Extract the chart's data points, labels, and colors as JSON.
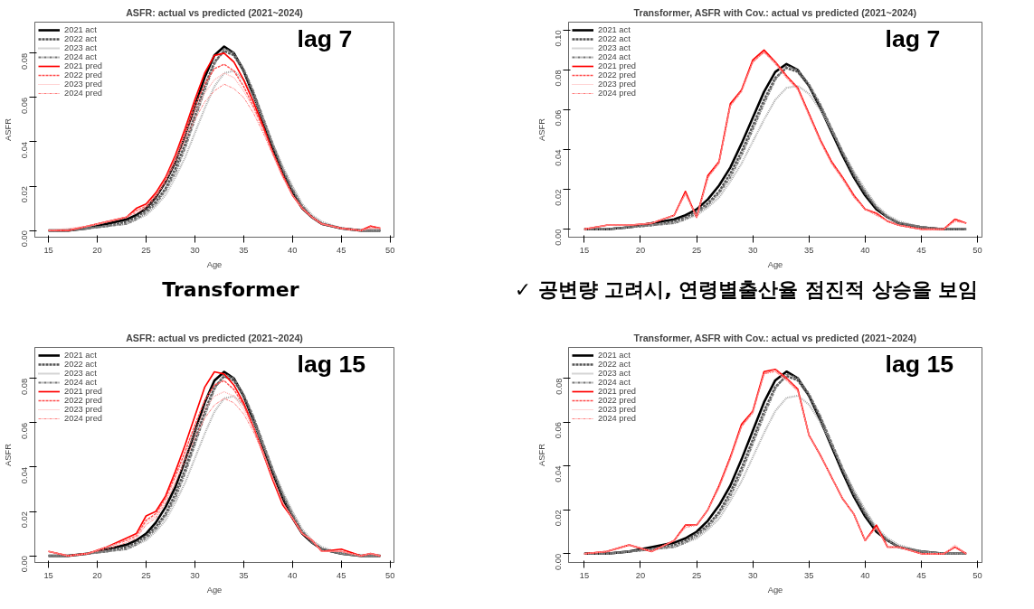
{
  "chart_data": [
    {
      "type": "line",
      "title": "ASFR: actual vs predicted (2021~2024)",
      "xlabel": "Age",
      "ylabel": "ASFR",
      "annotations": [
        "lag 7"
      ],
      "legend": "top left",
      "grid": false,
      "x": [
        15,
        17,
        19,
        21,
        23,
        24,
        25,
        26,
        27,
        28,
        29,
        30,
        31,
        32,
        33,
        34,
        35,
        36,
        37,
        38,
        39,
        40,
        41,
        42,
        43,
        45,
        47,
        48,
        49
      ],
      "xlim": [
        13.6,
        50.4
      ],
      "xticks": [
        15,
        20,
        25,
        30,
        35,
        40,
        45,
        50
      ],
      "ylim": [
        -0.003,
        0.094
      ],
      "yticks": [
        {
          "value": 0,
          "label": "0.00"
        },
        {
          "value": 0.02,
          "label": "0.02"
        },
        {
          "value": 0.04,
          "label": "0.04"
        },
        {
          "value": 0.06,
          "label": "0.06"
        },
        {
          "value": 0.08,
          "label": "0.08"
        }
      ],
      "series": [
        {
          "name": "2021 act",
          "color": "#000000",
          "line_style": "solid",
          "values": [
            0,
            0,
            0.001,
            0.003,
            0.005,
            0.007,
            0.01,
            0.015,
            0.022,
            0.031,
            0.043,
            0.056,
            0.069,
            0.079,
            0.083,
            0.08,
            0.072,
            0.061,
            0.049,
            0.037,
            0.026,
            0.017,
            0.01,
            0.006,
            0.003,
            0.001,
            0,
            0,
            0
          ]
        },
        {
          "name": "2022 act",
          "color": "#555555",
          "line_style": "dashed",
          "values": [
            0,
            0,
            0.001,
            0.002,
            0.004,
            0.006,
            0.009,
            0.013,
            0.019,
            0.028,
            0.039,
            0.052,
            0.065,
            0.076,
            0.081,
            0.079,
            0.072,
            0.062,
            0.05,
            0.038,
            0.027,
            0.018,
            0.011,
            0.006,
            0.003,
            0.001,
            0,
            0,
            0
          ]
        },
        {
          "name": "2023 act",
          "color": "#aaaaaa",
          "line_style": "dotted",
          "values": [
            0,
            0,
            0.001,
            0.002,
            0.003,
            0.005,
            0.007,
            0.011,
            0.016,
            0.024,
            0.033,
            0.044,
            0.055,
            0.065,
            0.071,
            0.072,
            0.068,
            0.06,
            0.05,
            0.039,
            0.029,
            0.02,
            0.012,
            0.007,
            0.004,
            0.001,
            0,
            0,
            0
          ]
        },
        {
          "name": "2024 act",
          "color": "#777777",
          "line_style": "dashdot",
          "values": [
            0,
            0,
            0.001,
            0.002,
            0.003,
            0.005,
            0.008,
            0.012,
            0.018,
            0.026,
            0.037,
            0.05,
            0.063,
            0.075,
            0.082,
            0.08,
            0.073,
            0.063,
            0.051,
            0.039,
            0.028,
            0.019,
            0.011,
            0.006,
            0.003,
            0.001,
            0,
            0,
            0
          ]
        },
        {
          "name": "2021 pred",
          "color": "#ff0000",
          "line_style": "solid",
          "values": [
            0,
            0,
            0.002,
            0.004,
            0.006,
            0.01,
            0.012,
            0.017,
            0.024,
            0.034,
            0.046,
            0.059,
            0.071,
            0.079,
            0.08,
            0.076,
            0.068,
            0.058,
            0.047,
            0.035,
            0.025,
            0.016,
            0.01,
            0.006,
            0.003,
            0.001,
            0,
            0.002,
            0.001
          ]
        },
        {
          "name": "2022 pred",
          "color": "#ff4d4d",
          "line_style": "dashed",
          "values": [
            0,
            0,
            0.002,
            0.004,
            0.006,
            0.009,
            0.011,
            0.016,
            0.023,
            0.033,
            0.044,
            0.056,
            0.066,
            0.073,
            0.075,
            0.072,
            0.065,
            0.056,
            0.046,
            0.035,
            0.025,
            0.016,
            0.01,
            0.006,
            0.003,
            0.001,
            0,
            0.002,
            0.001
          ]
        },
        {
          "name": "2023 pred",
          "color": "#ffaaaa",
          "line_style": "dotted",
          "values": [
            0,
            0.001,
            0.002,
            0.004,
            0.006,
            0.009,
            0.011,
            0.016,
            0.023,
            0.032,
            0.043,
            0.053,
            0.062,
            0.068,
            0.071,
            0.069,
            0.063,
            0.055,
            0.045,
            0.034,
            0.024,
            0.016,
            0.01,
            0.006,
            0.003,
            0.001,
            0,
            0.001,
            0.001
          ]
        },
        {
          "name": "2024 pred",
          "color": "#ff7f7f",
          "line_style": "dashdot",
          "values": [
            0,
            0,
            0.002,
            0.004,
            0.006,
            0.008,
            0.01,
            0.015,
            0.022,
            0.031,
            0.041,
            0.05,
            0.058,
            0.063,
            0.066,
            0.064,
            0.06,
            0.053,
            0.044,
            0.034,
            0.024,
            0.016,
            0.01,
            0.006,
            0.003,
            0.001,
            0,
            0.001,
            0.001
          ]
        }
      ]
    },
    {
      "type": "line",
      "title": "Transformer, ASFR with Cov.: actual vs predicted (2021~2024)",
      "xlabel": "Age",
      "ylabel": "ASFR",
      "annotations": [
        "lag 7",
        "✓ 공변량 고려시, 연령별출산율 점진적 상승을 보임"
      ],
      "legend": "top left",
      "grid": false,
      "x": [
        15,
        17,
        19,
        21,
        23,
        24,
        25,
        26,
        27,
        28,
        29,
        30,
        31,
        32,
        33,
        34,
        35,
        36,
        37,
        38,
        39,
        40,
        41,
        42,
        43,
        45,
        47,
        48,
        49
      ],
      "xlim": [
        13.6,
        50.4
      ],
      "xticks": [
        15,
        20,
        25,
        30,
        35,
        40,
        45,
        50
      ],
      "ylim": [
        -0.004,
        0.104
      ],
      "yticks": [
        {
          "value": 0,
          "label": "0.00"
        },
        {
          "value": 0.02,
          "label": "0.02"
        },
        {
          "value": 0.04,
          "label": "0.04"
        },
        {
          "value": 0.06,
          "label": "0.06"
        },
        {
          "value": 0.08,
          "label": "0.08"
        },
        {
          "value": 0.1,
          "label": "0.10"
        }
      ],
      "series": [
        {
          "name": "2021 act",
          "color": "#000000",
          "line_style": "solid",
          "values": [
            0,
            0,
            0.001,
            0.003,
            0.005,
            0.007,
            0.01,
            0.015,
            0.022,
            0.031,
            0.043,
            0.056,
            0.069,
            0.079,
            0.083,
            0.08,
            0.072,
            0.061,
            0.049,
            0.037,
            0.026,
            0.017,
            0.01,
            0.006,
            0.003,
            0.001,
            0,
            0,
            0
          ]
        },
        {
          "name": "2022 act",
          "color": "#555555",
          "line_style": "dashed",
          "values": [
            0,
            0,
            0.001,
            0.002,
            0.004,
            0.006,
            0.009,
            0.013,
            0.019,
            0.028,
            0.039,
            0.052,
            0.065,
            0.076,
            0.081,
            0.079,
            0.072,
            0.062,
            0.05,
            0.038,
            0.027,
            0.018,
            0.011,
            0.006,
            0.003,
            0.001,
            0,
            0,
            0
          ]
        },
        {
          "name": "2023 act",
          "color": "#aaaaaa",
          "line_style": "dotted",
          "values": [
            0,
            0,
            0.001,
            0.002,
            0.003,
            0.005,
            0.007,
            0.011,
            0.016,
            0.024,
            0.033,
            0.044,
            0.055,
            0.065,
            0.071,
            0.072,
            0.068,
            0.06,
            0.05,
            0.039,
            0.029,
            0.02,
            0.012,
            0.007,
            0.004,
            0.001,
            0,
            0,
            0
          ]
        },
        {
          "name": "2024 act",
          "color": "#777777",
          "line_style": "dashdot",
          "values": [
            0,
            0,
            0.001,
            0.002,
            0.003,
            0.005,
            0.008,
            0.012,
            0.018,
            0.026,
            0.037,
            0.05,
            0.063,
            0.075,
            0.082,
            0.08,
            0.073,
            0.063,
            0.051,
            0.039,
            0.028,
            0.019,
            0.011,
            0.006,
            0.003,
            0.001,
            0,
            0,
            0
          ]
        },
        {
          "name": "2021 pred",
          "color": "#ff0000",
          "line_style": "solid",
          "values": [
            0,
            0.002,
            0.002,
            0.003,
            0.007,
            0.019,
            0.006,
            0.027,
            0.034,
            0.063,
            0.07,
            0.085,
            0.09,
            0.084,
            0.077,
            0.071,
            0.058,
            0.045,
            0.034,
            0.026,
            0.017,
            0.01,
            0.008,
            0.004,
            0.002,
            0,
            0,
            0.005,
            0.003
          ]
        },
        {
          "name": "2022 pred",
          "color": "#ff4d4d",
          "line_style": "dashed",
          "values": [
            0,
            0.002,
            0.002,
            0.003,
            0.007,
            0.018,
            0.006,
            0.026,
            0.034,
            0.062,
            0.07,
            0.084,
            0.089,
            0.084,
            0.077,
            0.071,
            0.058,
            0.045,
            0.034,
            0.026,
            0.017,
            0.01,
            0.008,
            0.004,
            0.002,
            0,
            0,
            0.005,
            0.003
          ]
        },
        {
          "name": "2023 pred",
          "color": "#ffaaaa",
          "line_style": "dotted",
          "values": [
            0,
            0.002,
            0.002,
            0.003,
            0.007,
            0.018,
            0.006,
            0.026,
            0.033,
            0.062,
            0.069,
            0.084,
            0.089,
            0.083,
            0.076,
            0.07,
            0.057,
            0.044,
            0.033,
            0.025,
            0.016,
            0.01,
            0.007,
            0.004,
            0.002,
            0,
            0,
            0.004,
            0.003
          ]
        },
        {
          "name": "2024 pred",
          "color": "#ff7f7f",
          "line_style": "dashdot",
          "values": [
            0,
            0.002,
            0.002,
            0.003,
            0.007,
            0.018,
            0.006,
            0.026,
            0.033,
            0.062,
            0.069,
            0.084,
            0.089,
            0.083,
            0.076,
            0.07,
            0.057,
            0.044,
            0.033,
            0.025,
            0.016,
            0.01,
            0.007,
            0.004,
            0.002,
            0,
            0,
            0.004,
            0.003
          ]
        }
      ]
    },
    {
      "type": "line",
      "title": "ASFR: actual vs predicted (2021~2024)",
      "xlabel": "Age",
      "ylabel": "ASFR",
      "annotations": [
        "lag 15",
        "Transformer"
      ],
      "legend": "top left",
      "grid": false,
      "x": [
        15,
        17,
        19,
        21,
        23,
        24,
        25,
        26,
        27,
        28,
        29,
        30,
        31,
        32,
        33,
        34,
        35,
        36,
        37,
        38,
        39,
        40,
        41,
        42,
        43,
        45,
        47,
        48,
        49
      ],
      "xlim": [
        13.6,
        50.4
      ],
      "xticks": [
        15,
        20,
        25,
        30,
        35,
        40,
        45,
        50
      ],
      "ylim": [
        -0.003,
        0.094
      ],
      "yticks": [
        {
          "value": 0,
          "label": "0.00"
        },
        {
          "value": 0.02,
          "label": "0.02"
        },
        {
          "value": 0.04,
          "label": "0.04"
        },
        {
          "value": 0.06,
          "label": "0.06"
        },
        {
          "value": 0.08,
          "label": "0.08"
        }
      ],
      "series": [
        {
          "name": "2021 act",
          "color": "#000000",
          "line_style": "solid",
          "values": [
            0,
            0,
            0.001,
            0.003,
            0.005,
            0.007,
            0.01,
            0.015,
            0.022,
            0.031,
            0.043,
            0.056,
            0.069,
            0.079,
            0.083,
            0.08,
            0.072,
            0.061,
            0.049,
            0.037,
            0.026,
            0.017,
            0.01,
            0.006,
            0.003,
            0.001,
            0,
            0,
            0
          ]
        },
        {
          "name": "2022 act",
          "color": "#555555",
          "line_style": "dashed",
          "values": [
            0,
            0,
            0.001,
            0.002,
            0.004,
            0.006,
            0.009,
            0.013,
            0.019,
            0.028,
            0.039,
            0.052,
            0.065,
            0.076,
            0.081,
            0.079,
            0.072,
            0.062,
            0.05,
            0.038,
            0.027,
            0.018,
            0.011,
            0.006,
            0.003,
            0.001,
            0,
            0,
            0
          ]
        },
        {
          "name": "2023 act",
          "color": "#aaaaaa",
          "line_style": "dotted",
          "values": [
            0,
            0,
            0.001,
            0.002,
            0.003,
            0.005,
            0.007,
            0.011,
            0.016,
            0.024,
            0.033,
            0.044,
            0.055,
            0.065,
            0.071,
            0.072,
            0.068,
            0.06,
            0.05,
            0.039,
            0.029,
            0.02,
            0.012,
            0.007,
            0.004,
            0.001,
            0,
            0,
            0
          ]
        },
        {
          "name": "2024 act",
          "color": "#777777",
          "line_style": "dashdot",
          "values": [
            0,
            0,
            0.001,
            0.002,
            0.003,
            0.005,
            0.008,
            0.012,
            0.018,
            0.026,
            0.037,
            0.05,
            0.063,
            0.075,
            0.082,
            0.08,
            0.073,
            0.063,
            0.051,
            0.039,
            0.028,
            0.019,
            0.011,
            0.006,
            0.003,
            0.001,
            0,
            0,
            0
          ]
        },
        {
          "name": "2021 pred",
          "color": "#ff0000",
          "line_style": "solid",
          "values": [
            0.002,
            0,
            0.001,
            0.004,
            0.008,
            0.01,
            0.018,
            0.02,
            0.027,
            0.038,
            0.05,
            0.063,
            0.076,
            0.083,
            0.082,
            0.077,
            0.069,
            0.058,
            0.046,
            0.034,
            0.023,
            0.017,
            0.01,
            0.007,
            0.002,
            0.003,
            0,
            0.001,
            0
          ]
        },
        {
          "name": "2022 pred",
          "color": "#ff4d4d",
          "line_style": "dashed",
          "values": [
            0.002,
            0,
            0.001,
            0.004,
            0.007,
            0.009,
            0.016,
            0.019,
            0.026,
            0.036,
            0.047,
            0.059,
            0.07,
            0.077,
            0.079,
            0.075,
            0.068,
            0.058,
            0.047,
            0.035,
            0.024,
            0.017,
            0.01,
            0.007,
            0.002,
            0.002,
            0,
            0.001,
            0
          ]
        },
        {
          "name": "2023 pred",
          "color": "#ffaaaa",
          "line_style": "dotted",
          "values": [
            0.002,
            0,
            0.001,
            0.004,
            0.007,
            0.009,
            0.015,
            0.018,
            0.025,
            0.035,
            0.045,
            0.056,
            0.066,
            0.072,
            0.074,
            0.072,
            0.066,
            0.057,
            0.046,
            0.035,
            0.024,
            0.017,
            0.01,
            0.007,
            0.002,
            0.002,
            0,
            0.001,
            0
          ]
        },
        {
          "name": "2024 pred",
          "color": "#ff7f7f",
          "line_style": "dashdot",
          "values": [
            0.002,
            0,
            0.001,
            0.003,
            0.006,
            0.008,
            0.014,
            0.017,
            0.024,
            0.033,
            0.043,
            0.053,
            0.062,
            0.068,
            0.071,
            0.069,
            0.064,
            0.056,
            0.046,
            0.035,
            0.024,
            0.017,
            0.01,
            0.007,
            0.002,
            0.002,
            0,
            0.001,
            0
          ]
        }
      ]
    },
    {
      "type": "line",
      "title": "Transformer, ASFR with Cov.: actual vs predicted (2021~2024)",
      "xlabel": "Age",
      "ylabel": "ASFR",
      "annotations": [
        "lag 15"
      ],
      "legend": "top left",
      "grid": false,
      "x": [
        15,
        17,
        19,
        21,
        23,
        24,
        25,
        26,
        27,
        28,
        29,
        30,
        31,
        32,
        33,
        34,
        35,
        36,
        37,
        38,
        39,
        40,
        41,
        42,
        43,
        45,
        47,
        48,
        49
      ],
      "xlim": [
        13.6,
        50.4
      ],
      "xticks": [
        15,
        20,
        25,
        30,
        35,
        40,
        45,
        50
      ],
      "ylim": [
        -0.004,
        0.094
      ],
      "yticks": [
        {
          "value": 0,
          "label": "0.00"
        },
        {
          "value": 0.02,
          "label": "0.02"
        },
        {
          "value": 0.04,
          "label": "0.04"
        },
        {
          "value": 0.06,
          "label": "0.06"
        },
        {
          "value": 0.08,
          "label": "0.08"
        }
      ],
      "series": [
        {
          "name": "2021 act",
          "color": "#000000",
          "line_style": "solid",
          "values": [
            0,
            0,
            0.001,
            0.003,
            0.005,
            0.007,
            0.01,
            0.015,
            0.022,
            0.031,
            0.043,
            0.056,
            0.069,
            0.079,
            0.083,
            0.08,
            0.072,
            0.061,
            0.049,
            0.037,
            0.026,
            0.017,
            0.01,
            0.006,
            0.003,
            0.001,
            0,
            0,
            0
          ]
        },
        {
          "name": "2022 act",
          "color": "#555555",
          "line_style": "dashed",
          "values": [
            0,
            0,
            0.001,
            0.002,
            0.004,
            0.006,
            0.009,
            0.013,
            0.019,
            0.028,
            0.039,
            0.052,
            0.065,
            0.076,
            0.081,
            0.079,
            0.072,
            0.062,
            0.05,
            0.038,
            0.027,
            0.018,
            0.011,
            0.006,
            0.003,
            0.001,
            0,
            0,
            0
          ]
        },
        {
          "name": "2023 act",
          "color": "#aaaaaa",
          "line_style": "dotted",
          "values": [
            0,
            0,
            0.001,
            0.002,
            0.003,
            0.005,
            0.007,
            0.011,
            0.016,
            0.024,
            0.033,
            0.044,
            0.055,
            0.065,
            0.071,
            0.072,
            0.068,
            0.06,
            0.05,
            0.039,
            0.029,
            0.02,
            0.012,
            0.007,
            0.004,
            0.001,
            0,
            0,
            0
          ]
        },
        {
          "name": "2024 act",
          "color": "#777777",
          "line_style": "dashdot",
          "values": [
            0,
            0,
            0.001,
            0.002,
            0.003,
            0.005,
            0.008,
            0.012,
            0.018,
            0.026,
            0.037,
            0.05,
            0.063,
            0.075,
            0.082,
            0.08,
            0.073,
            0.063,
            0.051,
            0.039,
            0.028,
            0.019,
            0.011,
            0.006,
            0.003,
            0.001,
            0,
            0,
            0
          ]
        },
        {
          "name": "2021 pred",
          "color": "#ff0000",
          "line_style": "solid",
          "values": [
            0,
            0.001,
            0.004,
            0.001,
            0.006,
            0.013,
            0.013,
            0.02,
            0.031,
            0.044,
            0.059,
            0.065,
            0.083,
            0.084,
            0.08,
            0.075,
            0.054,
            0.045,
            0.035,
            0.025,
            0.018,
            0.006,
            0.013,
            0.003,
            0.003,
            0,
            0,
            0.003,
            0
          ]
        },
        {
          "name": "2022 pred",
          "color": "#ff4d4d",
          "line_style": "dashed",
          "values": [
            0,
            0.001,
            0.004,
            0.001,
            0.006,
            0.013,
            0.013,
            0.02,
            0.031,
            0.044,
            0.058,
            0.065,
            0.082,
            0.084,
            0.08,
            0.075,
            0.054,
            0.045,
            0.035,
            0.025,
            0.018,
            0.006,
            0.012,
            0.003,
            0.003,
            0,
            0,
            0.003,
            0
          ]
        },
        {
          "name": "2023 pred",
          "color": "#ffaaaa",
          "line_style": "dotted",
          "values": [
            0,
            0.001,
            0.004,
            0.001,
            0.006,
            0.012,
            0.013,
            0.02,
            0.03,
            0.043,
            0.058,
            0.064,
            0.082,
            0.083,
            0.079,
            0.074,
            0.054,
            0.045,
            0.035,
            0.025,
            0.018,
            0.006,
            0.012,
            0.003,
            0.003,
            0,
            0,
            0.004,
            0
          ]
        },
        {
          "name": "2024 pred",
          "color": "#ff7f7f",
          "line_style": "dashdot",
          "values": [
            0,
            0.001,
            0.004,
            0.001,
            0.006,
            0.012,
            0.013,
            0.02,
            0.03,
            0.043,
            0.058,
            0.064,
            0.082,
            0.083,
            0.079,
            0.074,
            0.054,
            0.045,
            0.035,
            0.025,
            0.018,
            0.006,
            0.012,
            0.003,
            0.003,
            0,
            0,
            0.003,
            0
          ]
        }
      ]
    }
  ]
}
